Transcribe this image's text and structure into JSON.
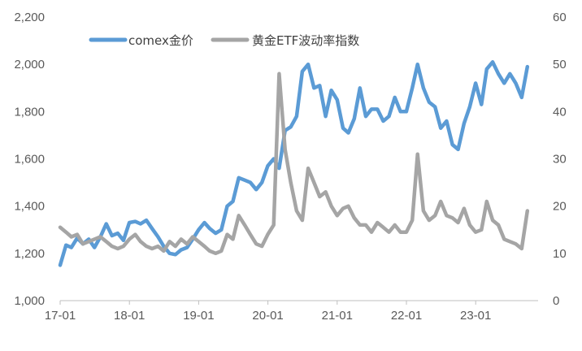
{
  "chart_data": {
    "type": "line",
    "title": "",
    "xlabel": "",
    "x_ticks": [
      "17-01",
      "18-01",
      "19-01",
      "20-01",
      "21-01",
      "22-01",
      "23-01"
    ],
    "y_left": {
      "range": [
        1000,
        2200
      ],
      "ticks": [
        "1,000",
        "1,200",
        "1,400",
        "1,600",
        "1,800",
        "2,000",
        "2,200"
      ]
    },
    "y_right": {
      "range": [
        0,
        60
      ],
      "ticks": [
        "0",
        "10",
        "20",
        "30",
        "40",
        "50",
        "60"
      ]
    },
    "legend_position": "top-left",
    "grid": false,
    "series": [
      {
        "name": "comex金价",
        "axis": "left",
        "color": "#5B9BD5",
        "points": [
          [
            "2017-01-01",
            1150
          ],
          [
            "2017-02-01",
            1235
          ],
          [
            "2017-03-01",
            1225
          ],
          [
            "2017-04-01",
            1265
          ],
          [
            "2017-05-01",
            1240
          ],
          [
            "2017-06-01",
            1260
          ],
          [
            "2017-07-01",
            1225
          ],
          [
            "2017-08-01",
            1270
          ],
          [
            "2017-09-01",
            1325
          ],
          [
            "2017-10-01",
            1275
          ],
          [
            "2017-11-01",
            1285
          ],
          [
            "2017-12-01",
            1255
          ],
          [
            "2018-01-01",
            1330
          ],
          [
            "2018-02-01",
            1335
          ],
          [
            "2018-03-01",
            1325
          ],
          [
            "2018-04-01",
            1340
          ],
          [
            "2018-05-01",
            1305
          ],
          [
            "2018-06-01",
            1270
          ],
          [
            "2018-07-01",
            1230
          ],
          [
            "2018-08-01",
            1200
          ],
          [
            "2018-09-01",
            1195
          ],
          [
            "2018-10-01",
            1215
          ],
          [
            "2018-11-01",
            1225
          ],
          [
            "2018-12-01",
            1260
          ],
          [
            "2019-01-01",
            1300
          ],
          [
            "2019-02-01",
            1330
          ],
          [
            "2019-03-01",
            1305
          ],
          [
            "2019-04-01",
            1285
          ],
          [
            "2019-05-01",
            1300
          ],
          [
            "2019-06-01",
            1400
          ],
          [
            "2019-07-01",
            1420
          ],
          [
            "2019-08-01",
            1520
          ],
          [
            "2019-09-01",
            1510
          ],
          [
            "2019-10-01",
            1500
          ],
          [
            "2019-11-01",
            1470
          ],
          [
            "2019-12-01",
            1500
          ],
          [
            "2020-01-01",
            1570
          ],
          [
            "2020-02-01",
            1600
          ],
          [
            "2020-03-01",
            1560
          ],
          [
            "2020-04-01",
            1720
          ],
          [
            "2020-05-01",
            1735
          ],
          [
            "2020-06-01",
            1780
          ],
          [
            "2020-07-01",
            1970
          ],
          [
            "2020-08-01",
            2000
          ],
          [
            "2020-09-01",
            1900
          ],
          [
            "2020-10-01",
            1910
          ],
          [
            "2020-11-01",
            1780
          ],
          [
            "2020-12-01",
            1890
          ],
          [
            "2021-01-01",
            1850
          ],
          [
            "2021-02-01",
            1730
          ],
          [
            "2021-03-01",
            1710
          ],
          [
            "2021-04-01",
            1770
          ],
          [
            "2021-05-01",
            1900
          ],
          [
            "2021-06-01",
            1780
          ],
          [
            "2021-07-01",
            1810
          ],
          [
            "2021-08-01",
            1810
          ],
          [
            "2021-09-01",
            1760
          ],
          [
            "2021-10-01",
            1780
          ],
          [
            "2021-11-01",
            1860
          ],
          [
            "2021-12-01",
            1800
          ],
          [
            "2022-01-01",
            1800
          ],
          [
            "2022-02-01",
            1900
          ],
          [
            "2022-03-01",
            2000
          ],
          [
            "2022-04-01",
            1900
          ],
          [
            "2022-05-01",
            1840
          ],
          [
            "2022-06-01",
            1820
          ],
          [
            "2022-07-01",
            1730
          ],
          [
            "2022-08-01",
            1760
          ],
          [
            "2022-09-01",
            1660
          ],
          [
            "2022-10-01",
            1640
          ],
          [
            "2022-11-01",
            1750
          ],
          [
            "2022-12-01",
            1820
          ],
          [
            "2023-01-01",
            1920
          ],
          [
            "2023-02-01",
            1830
          ],
          [
            "2023-03-01",
            1980
          ],
          [
            "2023-04-01",
            2010
          ],
          [
            "2023-05-01",
            1960
          ],
          [
            "2023-06-01",
            1920
          ],
          [
            "2023-07-01",
            1960
          ],
          [
            "2023-08-01",
            1920
          ],
          [
            "2023-09-01",
            1860
          ],
          [
            "2023-10-01",
            1990
          ]
        ]
      },
      {
        "name": "黄金ETF波动率指数",
        "axis": "right",
        "color": "#A5A5A5",
        "points": [
          [
            "2017-01-01",
            15.5
          ],
          [
            "2017-02-01",
            14.5
          ],
          [
            "2017-03-01",
            13.5
          ],
          [
            "2017-04-01",
            14.0
          ],
          [
            "2017-05-01",
            12.0
          ],
          [
            "2017-06-01",
            12.5
          ],
          [
            "2017-07-01",
            13.0
          ],
          [
            "2017-08-01",
            13.5
          ],
          [
            "2017-09-01",
            12.5
          ],
          [
            "2017-10-01",
            11.5
          ],
          [
            "2017-11-01",
            11.0
          ],
          [
            "2017-12-01",
            11.5
          ],
          [
            "2018-01-01",
            13.0
          ],
          [
            "2018-02-01",
            14.0
          ],
          [
            "2018-03-01",
            12.5
          ],
          [
            "2018-04-01",
            11.5
          ],
          [
            "2018-05-01",
            11.0
          ],
          [
            "2018-06-01",
            11.5
          ],
          [
            "2018-07-01",
            10.5
          ],
          [
            "2018-08-01",
            12.5
          ],
          [
            "2018-09-01",
            11.5
          ],
          [
            "2018-10-01",
            13.0
          ],
          [
            "2018-11-01",
            12.0
          ],
          [
            "2018-12-01",
            13.5
          ],
          [
            "2019-01-01",
            12.5
          ],
          [
            "2019-02-01",
            11.5
          ],
          [
            "2019-03-01",
            10.5
          ],
          [
            "2019-04-01",
            10.0
          ],
          [
            "2019-05-01",
            10.5
          ],
          [
            "2019-06-01",
            14.0
          ],
          [
            "2019-07-01",
            13.0
          ],
          [
            "2019-08-01",
            18.0
          ],
          [
            "2019-09-01",
            16.0
          ],
          [
            "2019-10-01",
            14.0
          ],
          [
            "2019-11-01",
            12.0
          ],
          [
            "2019-12-01",
            11.5
          ],
          [
            "2020-01-01",
            14.0
          ],
          [
            "2020-02-01",
            16.0
          ],
          [
            "2020-03-01",
            48.0
          ],
          [
            "2020-04-01",
            32.0
          ],
          [
            "2020-05-01",
            25.0
          ],
          [
            "2020-06-01",
            19.0
          ],
          [
            "2020-07-01",
            17.0
          ],
          [
            "2020-08-01",
            28.0
          ],
          [
            "2020-09-01",
            25.0
          ],
          [
            "2020-10-01",
            22.0
          ],
          [
            "2020-11-01",
            23.0
          ],
          [
            "2020-12-01",
            20.0
          ],
          [
            "2021-01-01",
            18.0
          ],
          [
            "2021-02-01",
            19.5
          ],
          [
            "2021-03-01",
            20.0
          ],
          [
            "2021-04-01",
            17.5
          ],
          [
            "2021-05-01",
            16.0
          ],
          [
            "2021-06-01",
            16.0
          ],
          [
            "2021-07-01",
            14.5
          ],
          [
            "2021-08-01",
            16.5
          ],
          [
            "2021-09-01",
            15.5
          ],
          [
            "2021-10-01",
            14.5
          ],
          [
            "2021-11-01",
            16.0
          ],
          [
            "2021-12-01",
            14.5
          ],
          [
            "2022-01-01",
            14.5
          ],
          [
            "2022-02-01",
            17.0
          ],
          [
            "2022-03-01",
            31.0
          ],
          [
            "2022-04-01",
            19.0
          ],
          [
            "2022-05-01",
            17.0
          ],
          [
            "2022-06-01",
            18.0
          ],
          [
            "2022-07-01",
            21.0
          ],
          [
            "2022-08-01",
            18.0
          ],
          [
            "2022-09-01",
            17.5
          ],
          [
            "2022-10-01",
            16.5
          ],
          [
            "2022-11-01",
            19.5
          ],
          [
            "2022-12-01",
            16.0
          ],
          [
            "2023-01-01",
            14.5
          ],
          [
            "2023-02-01",
            15.0
          ],
          [
            "2023-03-01",
            21.0
          ],
          [
            "2023-04-01",
            17.0
          ],
          [
            "2023-05-01",
            16.0
          ],
          [
            "2023-06-01",
            13.0
          ],
          [
            "2023-07-01",
            12.5
          ],
          [
            "2023-08-01",
            12.0
          ],
          [
            "2023-09-01",
            11.0
          ],
          [
            "2023-10-01",
            19.0
          ]
        ]
      }
    ]
  }
}
